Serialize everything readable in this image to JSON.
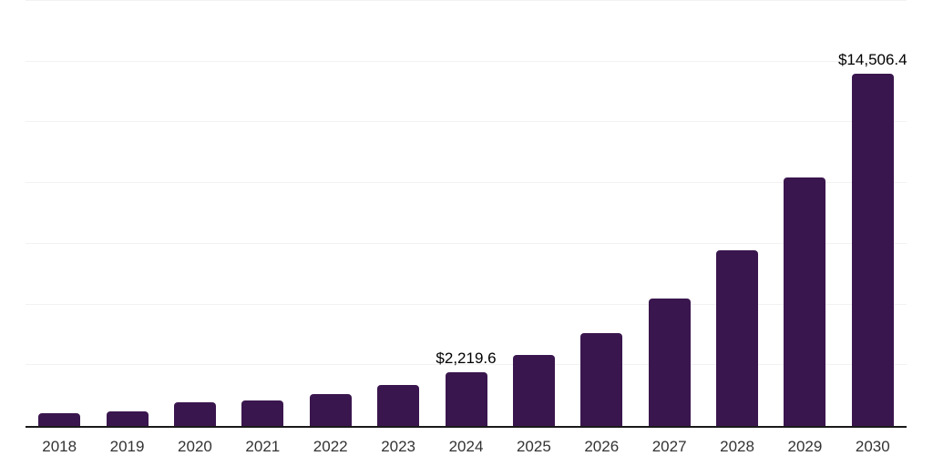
{
  "chart_data": {
    "type": "bar",
    "title": "",
    "xlabel": "",
    "ylabel": "",
    "categories": [
      "2018",
      "2019",
      "2020",
      "2021",
      "2022",
      "2023",
      "2024",
      "2025",
      "2026",
      "2027",
      "2028",
      "2029",
      "2030"
    ],
    "values": [
      520,
      615,
      970,
      1040,
      1300,
      1680,
      2219.6,
      2910,
      3840,
      5260,
      7240,
      10220,
      14506.4
    ],
    "point_labels": [
      "",
      "",
      "",
      "",
      "",
      "",
      "$2,219.6",
      "",
      "",
      "",
      "",
      "",
      "$14,506.4"
    ],
    "ylim": [
      0,
      17500
    ],
    "gridline_step": 2500,
    "grid": "horizontal",
    "legend": "none",
    "colors": {
      "bar": "#3A164E",
      "gridline": "#F2F2F2",
      "axis": "#1A1A1A",
      "tick_label": "#333333",
      "data_label": "#000000",
      "background": "#FFFFFF"
    }
  }
}
